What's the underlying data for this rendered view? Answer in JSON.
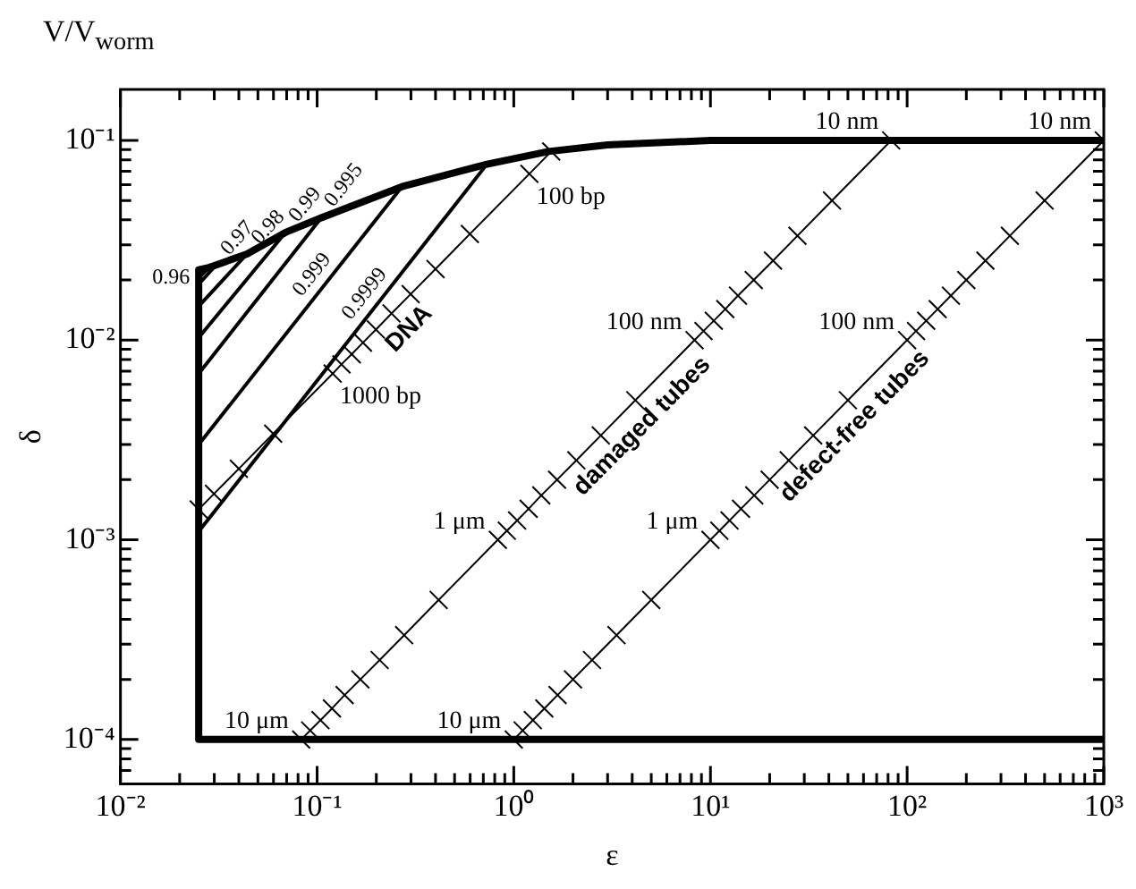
{
  "chart_data": {
    "type": "line",
    "title": "V/V$_{worm}$",
    "xlabel": "ε",
    "ylabel": "δ",
    "log": "xy",
    "grid": false,
    "legend": false,
    "marker": "none",
    "xlim": [
      0.01,
      1000
    ],
    "ylim": [
      6e-05,
      0.18
    ],
    "xticks": [
      {
        "value": 0.01,
        "label": "10⁻²"
      },
      {
        "value": 0.02,
        "label": null
      },
      {
        "value": 0.03,
        "label": null
      },
      {
        "value": 0.04,
        "label": null
      },
      {
        "value": 0.05,
        "label": null
      },
      {
        "value": 0.06,
        "label": null
      },
      {
        "value": 0.07,
        "label": null
      },
      {
        "value": 0.08,
        "label": null
      },
      {
        "value": 0.09,
        "label": null
      },
      {
        "value": 0.1,
        "label": "10⁻¹"
      },
      {
        "value": 0.2,
        "label": null
      },
      {
        "value": 0.3,
        "label": null
      },
      {
        "value": 0.4,
        "label": null
      },
      {
        "value": 0.5,
        "label": null
      },
      {
        "value": 0.6,
        "label": null
      },
      {
        "value": 0.7,
        "label": null
      },
      {
        "value": 0.8,
        "label": null
      },
      {
        "value": 0.9,
        "label": null
      },
      {
        "value": 1,
        "label": "10⁰"
      },
      {
        "value": 2,
        "label": null
      },
      {
        "value": 3,
        "label": null
      },
      {
        "value": 4,
        "label": null
      },
      {
        "value": 5,
        "label": null
      },
      {
        "value": 6,
        "label": null
      },
      {
        "value": 7,
        "label": null
      },
      {
        "value": 8,
        "label": null
      },
      {
        "value": 9,
        "label": null
      },
      {
        "value": 10,
        "label": "10¹"
      },
      {
        "value": 20,
        "label": null
      },
      {
        "value": 30,
        "label": null
      },
      {
        "value": 40,
        "label": null
      },
      {
        "value": 50,
        "label": null
      },
      {
        "value": 60,
        "label": null
      },
      {
        "value": 70,
        "label": null
      },
      {
        "value": 80,
        "label": null
      },
      {
        "value": 90,
        "label": null
      },
      {
        "value": 100,
        "label": "10²"
      },
      {
        "value": 200,
        "label": null
      },
      {
        "value": 300,
        "label": null
      },
      {
        "value": 400,
        "label": null
      },
      {
        "value": 500,
        "label": null
      },
      {
        "value": 600,
        "label": null
      },
      {
        "value": 700,
        "label": null
      },
      {
        "value": 800,
        "label": null
      },
      {
        "value": 900,
        "label": null
      },
      {
        "value": 1000,
        "label": "10³"
      }
    ],
    "yticks": [
      {
        "value": 6e-05,
        "label": null
      },
      {
        "value": 7e-05,
        "label": null
      },
      {
        "value": 8e-05,
        "label": null
      },
      {
        "value": 9e-05,
        "label": null
      },
      {
        "value": 0.0001,
        "label": "10⁻⁴"
      },
      {
        "value": 0.0002,
        "label": null
      },
      {
        "value": 0.0003,
        "label": null
      },
      {
        "value": 0.0004,
        "label": null
      },
      {
        "value": 0.0005,
        "label": null
      },
      {
        "value": 0.0006,
        "label": null
      },
      {
        "value": 0.0007,
        "label": null
      },
      {
        "value": 0.0008,
        "label": null
      },
      {
        "value": 0.0009,
        "label": null
      },
      {
        "value": 0.001,
        "label": "10⁻³"
      },
      {
        "value": 0.002,
        "label": null
      },
      {
        "value": 0.003,
        "label": null
      },
      {
        "value": 0.004,
        "label": null
      },
      {
        "value": 0.005,
        "label": null
      },
      {
        "value": 0.006,
        "label": null
      },
      {
        "value": 0.007,
        "label": null
      },
      {
        "value": 0.008,
        "label": null
      },
      {
        "value": 0.009,
        "label": null
      },
      {
        "value": 0.01,
        "label": "10⁻²"
      },
      {
        "value": 0.02,
        "label": null
      },
      {
        "value": 0.03,
        "label": null
      },
      {
        "value": 0.04,
        "label": null
      },
      {
        "value": 0.05,
        "label": null
      },
      {
        "value": 0.06,
        "label": null
      },
      {
        "value": 0.07,
        "label": null
      },
      {
        "value": 0.08,
        "label": null
      },
      {
        "value": 0.09,
        "label": null
      },
      {
        "value": 0.1,
        "label": "10⁻¹"
      }
    ],
    "series": [
      {
        "color": "#000000",
        "x": [
          1000,
          0.025,
          0.025,
          0.0282,
          0.0307,
          0.044,
          0.069,
          0.105,
          0.27,
          0.73,
          1.5,
          3,
          10,
          1000
        ],
        "values": [
          0.0001,
          0.0001,
          0.0225,
          0.0231,
          0.0238,
          0.027,
          0.0346,
          0.041,
          0.0587,
          0.076,
          0.088,
          0.095,
          0.1,
          0.1
        ]
      },
      {
        "name": "0.96",
        "color": "#000000",
        "x": [
          0.025,
          0.0282
        ],
        "values": [
          0.0205,
          0.0231
        ]
      },
      {
        "name": "0.97",
        "color": "#000000",
        "x": [
          0.025,
          0.0307
        ],
        "values": [
          0.0191,
          0.0238
        ]
      },
      {
        "name": "0.98",
        "color": "#000000",
        "x": [
          0.025,
          0.044
        ],
        "values": [
          0.0148,
          0.027
        ]
      },
      {
        "name": "0.99",
        "color": "#000000",
        "x": [
          0.025,
          0.069
        ],
        "values": [
          0.0103,
          0.0346
        ]
      },
      {
        "name": "0.995",
        "color": "#000000",
        "x": [
          0.025,
          0.105
        ],
        "values": [
          0.0068,
          0.041
        ]
      },
      {
        "name": "0.999",
        "color": "#000000",
        "x": [
          0.025,
          0.27
        ],
        "values": [
          0.003,
          0.0587
        ]
      },
      {
        "name": "0.9999",
        "color": "#000000",
        "x": [
          0.025,
          0.73
        ],
        "values": [
          0.0011,
          0.076
        ]
      },
      {
        "name": "DNA",
        "color": "#000000",
        "marker": "cross",
        "x": [
          0.025,
          0.0299,
          0.04,
          0.0598,
          0.12,
          0.133,
          0.15,
          0.171,
          0.199,
          0.239,
          0.299,
          0.4,
          0.598,
          1.2,
          1.55
        ],
        "values": [
          0.00142,
          0.0017,
          0.00227,
          0.0034,
          0.0068,
          0.00756,
          0.0085,
          0.00971,
          0.0113,
          0.0136,
          0.017,
          0.0227,
          0.034,
          0.068,
          0.088
        ]
      },
      {
        "name": "damaged tubes",
        "color": "#000000",
        "marker": "cross",
        "x": [
          0.083,
          0.0922,
          0.104,
          0.119,
          0.138,
          0.166,
          0.208,
          0.277,
          0.415,
          0.83,
          0.922,
          1.04,
          1.19,
          1.38,
          1.66,
          2.08,
          2.77,
          4.15,
          8.3,
          9.22,
          10.4,
          11.9,
          13.8,
          16.6,
          20.8,
          27.7,
          41.5,
          83
        ],
        "values": [
          0.0001,
          0.000111,
          0.000125,
          0.000143,
          0.000167,
          0.0002,
          0.00025,
          0.000333,
          0.0005,
          0.001,
          0.00111,
          0.00125,
          0.00143,
          0.00167,
          0.002,
          0.0025,
          0.00333,
          0.005,
          0.01,
          0.0111,
          0.0125,
          0.0143,
          0.0167,
          0.02,
          0.025,
          0.0333,
          0.05,
          0.1
        ]
      },
      {
        "name": "defect-free tubes",
        "color": "#000000",
        "marker": "cross",
        "x": [
          1,
          1.11,
          1.25,
          1.43,
          1.67,
          2,
          2.5,
          3.33,
          5,
          10,
          11.1,
          12.5,
          14.3,
          16.7,
          20,
          25,
          33.3,
          50,
          100,
          111,
          125,
          143,
          167,
          200,
          250,
          333,
          500,
          1000
        ],
        "values": [
          0.0001,
          0.000111,
          0.000125,
          0.000143,
          0.000167,
          0.0002,
          0.00025,
          0.000333,
          0.0005,
          0.001,
          0.00111,
          0.00125,
          0.00143,
          0.00167,
          0.002,
          0.0025,
          0.00333,
          0.005,
          0.01,
          0.0111,
          0.0125,
          0.0143,
          0.0167,
          0.02,
          0.025,
          0.0333,
          0.05,
          0.1
        ]
      }
    ],
    "annotations": [
      {
        "text": "100 bp",
        "x": 1.2,
        "y": 0.068
      },
      {
        "text": "1000 bp",
        "x": 0.12,
        "y": 0.0068
      },
      {
        "text": "10 nm",
        "x": 83,
        "y": 0.1
      },
      {
        "text": "100 nm",
        "x": 8.3,
        "y": 0.01
      },
      {
        "text": "1 μm",
        "x": 0.83,
        "y": 0.001
      },
      {
        "text": "10 μm",
        "x": 0.083,
        "y": 0.0001
      },
      {
        "text": "10 nm",
        "x": 1000,
        "y": 0.1
      },
      {
        "text": "100 nm",
        "x": 100,
        "y": 0.01
      },
      {
        "text": "1 μm",
        "x": 10,
        "y": 0.001
      },
      {
        "text": "10 μm",
        "x": 1,
        "y": 0.0001
      }
    ]
  }
}
